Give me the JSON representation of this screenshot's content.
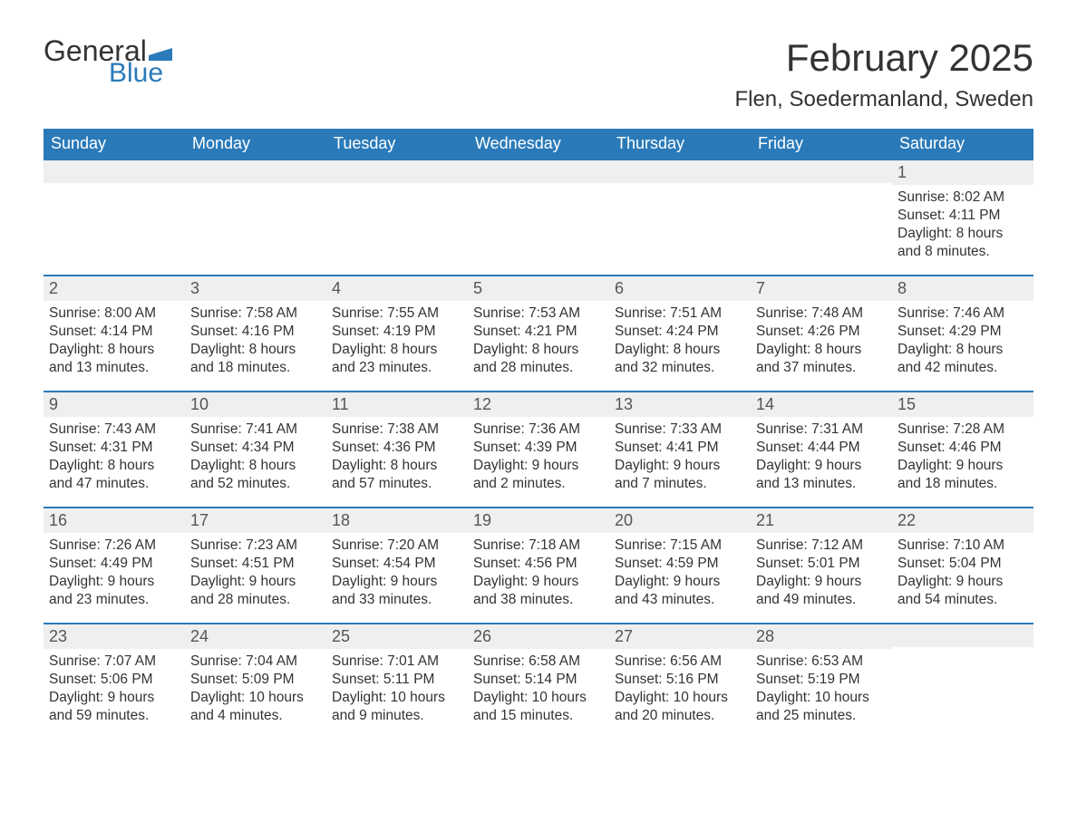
{
  "logo": {
    "text_general": "General",
    "text_blue": "Blue",
    "flag_color": "#2a7ab9"
  },
  "title": "February 2025",
  "location": "Flen, Soedermanland, Sweden",
  "colors": {
    "header_bg": "#2a7ab9",
    "header_text": "#ffffff",
    "daynum_bg": "#efefef",
    "border_top": "#2a7ab9",
    "body_text": "#333333",
    "page_bg": "#ffffff"
  },
  "weekdays": [
    "Sunday",
    "Monday",
    "Tuesday",
    "Wednesday",
    "Thursday",
    "Friday",
    "Saturday"
  ],
  "weeks": [
    [
      null,
      null,
      null,
      null,
      null,
      null,
      {
        "n": "1",
        "sunrise": "8:02 AM",
        "sunset": "4:11 PM",
        "daylight": "8 hours and 8 minutes."
      }
    ],
    [
      {
        "n": "2",
        "sunrise": "8:00 AM",
        "sunset": "4:14 PM",
        "daylight": "8 hours and 13 minutes."
      },
      {
        "n": "3",
        "sunrise": "7:58 AM",
        "sunset": "4:16 PM",
        "daylight": "8 hours and 18 minutes."
      },
      {
        "n": "4",
        "sunrise": "7:55 AM",
        "sunset": "4:19 PM",
        "daylight": "8 hours and 23 minutes."
      },
      {
        "n": "5",
        "sunrise": "7:53 AM",
        "sunset": "4:21 PM",
        "daylight": "8 hours and 28 minutes."
      },
      {
        "n": "6",
        "sunrise": "7:51 AM",
        "sunset": "4:24 PM",
        "daylight": "8 hours and 32 minutes."
      },
      {
        "n": "7",
        "sunrise": "7:48 AM",
        "sunset": "4:26 PM",
        "daylight": "8 hours and 37 minutes."
      },
      {
        "n": "8",
        "sunrise": "7:46 AM",
        "sunset": "4:29 PM",
        "daylight": "8 hours and 42 minutes."
      }
    ],
    [
      {
        "n": "9",
        "sunrise": "7:43 AM",
        "sunset": "4:31 PM",
        "daylight": "8 hours and 47 minutes."
      },
      {
        "n": "10",
        "sunrise": "7:41 AM",
        "sunset": "4:34 PM",
        "daylight": "8 hours and 52 minutes."
      },
      {
        "n": "11",
        "sunrise": "7:38 AM",
        "sunset": "4:36 PM",
        "daylight": "8 hours and 57 minutes."
      },
      {
        "n": "12",
        "sunrise": "7:36 AM",
        "sunset": "4:39 PM",
        "daylight": "9 hours and 2 minutes."
      },
      {
        "n": "13",
        "sunrise": "7:33 AM",
        "sunset": "4:41 PM",
        "daylight": "9 hours and 7 minutes."
      },
      {
        "n": "14",
        "sunrise": "7:31 AM",
        "sunset": "4:44 PM",
        "daylight": "9 hours and 13 minutes."
      },
      {
        "n": "15",
        "sunrise": "7:28 AM",
        "sunset": "4:46 PM",
        "daylight": "9 hours and 18 minutes."
      }
    ],
    [
      {
        "n": "16",
        "sunrise": "7:26 AM",
        "sunset": "4:49 PM",
        "daylight": "9 hours and 23 minutes."
      },
      {
        "n": "17",
        "sunrise": "7:23 AM",
        "sunset": "4:51 PM",
        "daylight": "9 hours and 28 minutes."
      },
      {
        "n": "18",
        "sunrise": "7:20 AM",
        "sunset": "4:54 PM",
        "daylight": "9 hours and 33 minutes."
      },
      {
        "n": "19",
        "sunrise": "7:18 AM",
        "sunset": "4:56 PM",
        "daylight": "9 hours and 38 minutes."
      },
      {
        "n": "20",
        "sunrise": "7:15 AM",
        "sunset": "4:59 PM",
        "daylight": "9 hours and 43 minutes."
      },
      {
        "n": "21",
        "sunrise": "7:12 AM",
        "sunset": "5:01 PM",
        "daylight": "9 hours and 49 minutes."
      },
      {
        "n": "22",
        "sunrise": "7:10 AM",
        "sunset": "5:04 PM",
        "daylight": "9 hours and 54 minutes."
      }
    ],
    [
      {
        "n": "23",
        "sunrise": "7:07 AM",
        "sunset": "5:06 PM",
        "daylight": "9 hours and 59 minutes."
      },
      {
        "n": "24",
        "sunrise": "7:04 AM",
        "sunset": "5:09 PM",
        "daylight": "10 hours and 4 minutes."
      },
      {
        "n": "25",
        "sunrise": "7:01 AM",
        "sunset": "5:11 PM",
        "daylight": "10 hours and 9 minutes."
      },
      {
        "n": "26",
        "sunrise": "6:58 AM",
        "sunset": "5:14 PM",
        "daylight": "10 hours and 15 minutes."
      },
      {
        "n": "27",
        "sunrise": "6:56 AM",
        "sunset": "5:16 PM",
        "daylight": "10 hours and 20 minutes."
      },
      {
        "n": "28",
        "sunrise": "6:53 AM",
        "sunset": "5:19 PM",
        "daylight": "10 hours and 25 minutes."
      },
      null
    ]
  ],
  "labels": {
    "sunrise_prefix": "Sunrise: ",
    "sunset_prefix": "Sunset: ",
    "daylight_prefix": "Daylight: "
  }
}
